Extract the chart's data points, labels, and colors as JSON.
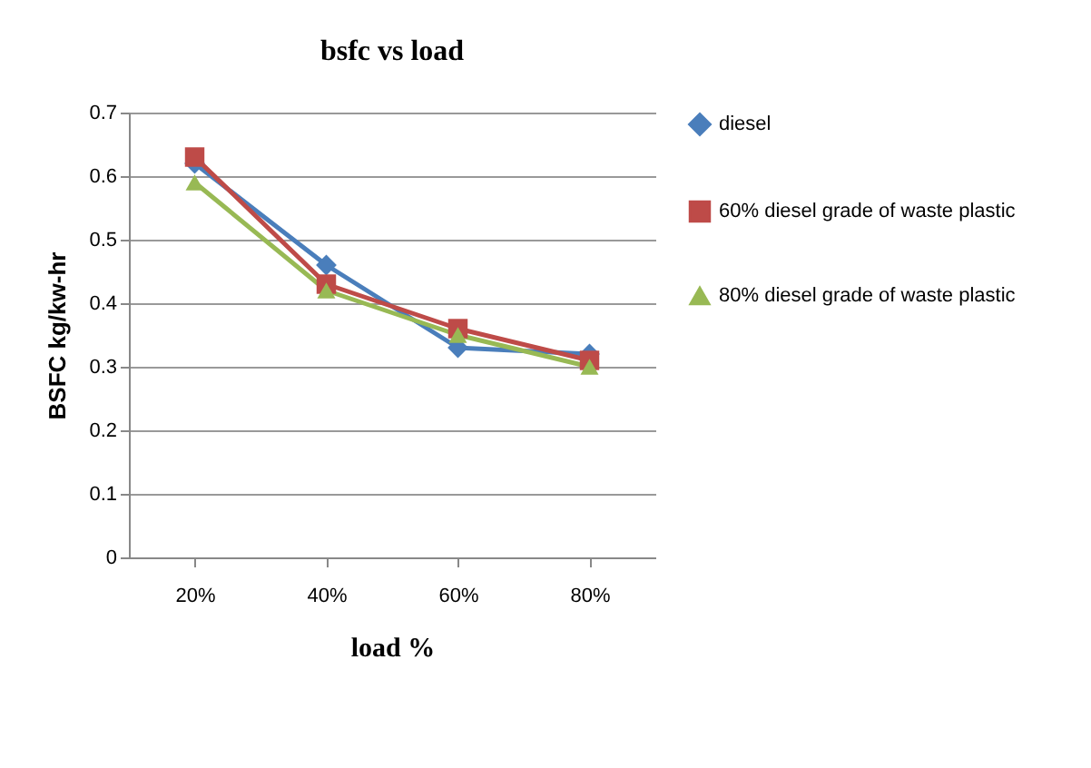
{
  "chart_data": {
    "type": "line",
    "title": "bsfc vs load",
    "xlabel": "load %",
    "ylabel": "BSFC kg/kw-hr",
    "categories": [
      "20%",
      "40%",
      "60%",
      "80%"
    ],
    "series": [
      {
        "name": "diesel",
        "color": "#4a7ebb",
        "marker": "diamond",
        "values": [
          0.62,
          0.46,
          0.33,
          0.32
        ]
      },
      {
        "name": "60%  diesel grade of waste plastic",
        "color": "#be4b48",
        "marker": "square",
        "values": [
          0.63,
          0.43,
          0.36,
          0.31
        ]
      },
      {
        "name": "80% diesel grade of waste plastic",
        "color": "#98b954",
        "marker": "triangle",
        "values": [
          0.59,
          0.42,
          0.35,
          0.3
        ]
      }
    ],
    "ylim": [
      0,
      0.7
    ],
    "yticks": [
      0,
      0.1,
      0.2,
      0.3,
      0.4,
      0.5,
      0.6,
      0.7
    ],
    "grid": "y",
    "legend": "right",
    "line_style": "solid"
  }
}
